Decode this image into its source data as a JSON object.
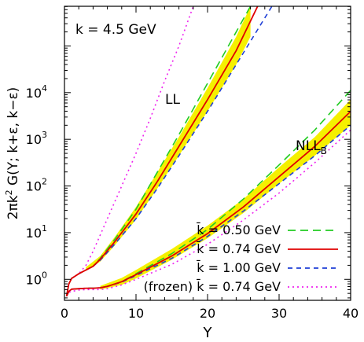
{
  "chart_data": {
    "type": "line",
    "xlabel": "Y",
    "ylabel_main": "2πk",
    "ylabel_sup": "2",
    "ylabel_rest": " G(Y; k+ε, k−ε)",
    "xlim": [
      0,
      40
    ],
    "ylim_log10": [
      -0.45,
      5.85
    ],
    "log_y": true,
    "x_ticks": [
      0,
      10,
      20,
      30,
      40
    ],
    "y_tick_exponents": [
      0,
      1,
      2,
      3,
      4
    ],
    "annotations": {
      "k_label": "k = 4.5 GeV",
      "ll_label": "LL",
      "nll_label": "NLL",
      "nll_sub": "B",
      "frozen_prefix": "(frozen)"
    },
    "legend_placement": "bottom-right",
    "colors": {
      "green": "#22cc22",
      "red": "#e00000",
      "blue": "#1f3fd6",
      "magenta": "#ee22ee",
      "band": "#f5f000"
    },
    "series": [
      {
        "name": "k̄ = 0.50 GeV",
        "color_key": "green",
        "dash": "10,6",
        "groups": {
          "LL": [
            [
              0.3,
              -0.36
            ],
            [
              0.6,
              -0.1
            ],
            [
              1,
              0.02
            ],
            [
              2,
              0.12
            ],
            [
              3,
              0.2
            ],
            [
              4,
              0.28
            ],
            [
              5,
              0.45
            ],
            [
              7,
              0.85
            ],
            [
              10,
              1.5
            ],
            [
              13,
              2.3
            ],
            [
              16,
              3.1
            ],
            [
              20,
              4.2
            ],
            [
              24,
              5.3
            ],
            [
              26,
              5.85
            ]
          ],
          "NLL": [
            [
              0.3,
              -0.36
            ],
            [
              0.6,
              -0.26
            ],
            [
              1,
              -0.21
            ],
            [
              2,
              -0.2
            ],
            [
              3,
              -0.19
            ],
            [
              4,
              -0.19
            ],
            [
              5,
              -0.18
            ],
            [
              6,
              -0.15
            ],
            [
              8,
              -0.05
            ],
            [
              10,
              0.12
            ],
            [
              15,
              0.55
            ],
            [
              20,
              1.07
            ],
            [
              25,
              1.72
            ],
            [
              30,
              2.45
            ],
            [
              35,
              3.2
            ],
            [
              40,
              4.05
            ]
          ]
        }
      },
      {
        "name": "k̄ = 0.74 GeV",
        "color_key": "red",
        "dash": "",
        "groups": {
          "LL": [
            [
              0.3,
              -0.36
            ],
            [
              0.6,
              -0.1
            ],
            [
              1,
              0.02
            ],
            [
              2,
              0.12
            ],
            [
              3,
              0.2
            ],
            [
              4,
              0.28
            ],
            [
              5,
              0.43
            ],
            [
              7,
              0.8
            ],
            [
              10,
              1.4
            ],
            [
              13,
              2.1
            ],
            [
              16,
              2.85
            ],
            [
              20,
              3.85
            ],
            [
              24,
              4.9
            ],
            [
              27,
              5.85
            ]
          ],
          "NLL": [
            [
              0.3,
              -0.36
            ],
            [
              0.6,
              -0.26
            ],
            [
              1,
              -0.21
            ],
            [
              2,
              -0.2
            ],
            [
              3,
              -0.19
            ],
            [
              4,
              -0.19
            ],
            [
              5,
              -0.18
            ],
            [
              6,
              -0.15
            ],
            [
              8,
              -0.05
            ],
            [
              10,
              0.1
            ],
            [
              15,
              0.5
            ],
            [
              20,
              0.98
            ],
            [
              25,
              1.55
            ],
            [
              30,
              2.2
            ],
            [
              35,
              2.85
            ],
            [
              40,
              3.6
            ]
          ]
        }
      },
      {
        "name": "k̄ = 1.00 GeV",
        "color_key": "blue",
        "dash": "6,5",
        "groups": {
          "LL": [
            [
              0.3,
              -0.36
            ],
            [
              0.6,
              -0.1
            ],
            [
              1,
              0.02
            ],
            [
              2,
              0.12
            ],
            [
              3,
              0.2
            ],
            [
              4,
              0.28
            ],
            [
              5,
              0.41
            ],
            [
              7,
              0.75
            ],
            [
              10,
              1.3
            ],
            [
              13,
              1.95
            ],
            [
              16,
              2.65
            ],
            [
              20,
              3.6
            ],
            [
              24,
              4.6
            ],
            [
              29,
              5.85
            ]
          ],
          "NLL": [
            [
              0.3,
              -0.36
            ],
            [
              0.6,
              -0.26
            ],
            [
              1,
              -0.21
            ],
            [
              2,
              -0.2
            ],
            [
              3,
              -0.19
            ],
            [
              4,
              -0.19
            ],
            [
              5,
              -0.18
            ],
            [
              6,
              -0.15
            ],
            [
              8,
              -0.06
            ],
            [
              10,
              0.08
            ],
            [
              15,
              0.45
            ],
            [
              20,
              0.92
            ],
            [
              25,
              1.46
            ],
            [
              30,
              2.05
            ],
            [
              35,
              2.65
            ],
            [
              40,
              3.3
            ]
          ]
        }
      },
      {
        "name": "k̄ = 0.74 GeV",
        "legend_prefix": true,
        "color_key": "magenta",
        "dash": "2,4",
        "groups": {
          "LL": [
            [
              0.3,
              -0.36
            ],
            [
              0.6,
              -0.1
            ],
            [
              1,
              0.02
            ],
            [
              2,
              0.12
            ],
            [
              3,
              0.3
            ],
            [
              4,
              0.6
            ],
            [
              5,
              0.95
            ],
            [
              7,
              1.65
            ],
            [
              10,
              2.7
            ],
            [
              12,
              3.45
            ],
            [
              14,
              4.25
            ],
            [
              16,
              5.0
            ],
            [
              18,
              5.85
            ]
          ],
          "NLL": [
            [
              0.3,
              -0.36
            ],
            [
              0.6,
              -0.28
            ],
            [
              1,
              -0.26
            ],
            [
              2,
              -0.23
            ],
            [
              3,
              -0.22
            ],
            [
              4,
              -0.22
            ],
            [
              5,
              -0.22
            ],
            [
              6,
              -0.2
            ],
            [
              8,
              -0.12
            ],
            [
              10,
              0.0
            ],
            [
              15,
              0.32
            ],
            [
              20,
              0.75
            ],
            [
              25,
              1.27
            ],
            [
              30,
              1.85
            ],
            [
              35,
              2.5
            ],
            [
              40,
              3.2
            ]
          ]
        }
      }
    ],
    "bands": {
      "color_key": "band",
      "LL": [
        [
          3,
          0.18,
          0.26
        ],
        [
          5,
          0.38,
          0.5
        ],
        [
          7,
          0.72,
          0.9
        ],
        [
          10,
          1.28,
          1.55
        ],
        [
          13,
          1.95,
          2.3
        ],
        [
          16,
          2.65,
          3.05
        ],
        [
          20,
          3.6,
          4.1
        ],
        [
          24,
          4.6,
          5.2
        ],
        [
          26,
          5.2,
          5.85
        ]
      ],
      "NLL": [
        [
          5,
          -0.22,
          -0.14
        ],
        [
          8,
          -0.12,
          0.03
        ],
        [
          10,
          0.02,
          0.2
        ],
        [
          15,
          0.42,
          0.65
        ],
        [
          20,
          0.88,
          1.15
        ],
        [
          25,
          1.42,
          1.72
        ],
        [
          30,
          2.05,
          2.4
        ],
        [
          35,
          2.65,
          3.05
        ],
        [
          40,
          3.3,
          3.85
        ]
      ]
    }
  }
}
